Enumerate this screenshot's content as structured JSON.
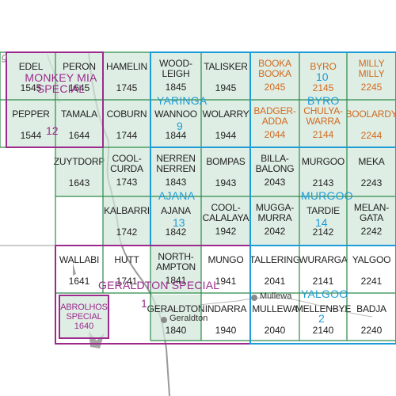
{
  "map": {
    "sheets": [
      {
        "id": "edel",
        "name": "EDEL",
        "number": "1545",
        "shaded": true
      },
      {
        "id": "peron",
        "name": "PERON",
        "number": "1645",
        "shaded": true
      },
      {
        "id": "hamelin",
        "name": "HAMELIN",
        "number": "1745",
        "shaded": true
      },
      {
        "id": "woodleigh",
        "name": "WOOD-\nLEIGH",
        "number": "1845",
        "shaded": true
      },
      {
        "id": "talisker",
        "name": "TALISKER",
        "number": "1945",
        "shaded": true
      },
      {
        "id": "booka-booka",
        "name": "BOOKA\nBOOKA",
        "number": "2045",
        "orange": true
      },
      {
        "id": "byro",
        "name": "BYRO",
        "number": "2145",
        "orange": true
      },
      {
        "id": "milly-milly",
        "name": "MILLY\nMILLY",
        "number": "2245",
        "orange": true
      },
      {
        "id": "pepper",
        "name": "PEPPER",
        "number": "1544",
        "shaded": true
      },
      {
        "id": "tamala",
        "name": "TAMALA",
        "number": "1644",
        "shaded": true
      },
      {
        "id": "coburn",
        "name": "COBURN",
        "number": "1744",
        "shaded": true
      },
      {
        "id": "wannoo",
        "name": "WANNOO",
        "number": "1844",
        "shaded": true
      },
      {
        "id": "wolarry",
        "name": "WOLARRY",
        "number": "1944",
        "shaded": true
      },
      {
        "id": "badgeradda",
        "name": "BADGER-\nADDA",
        "number": "2044",
        "orange": true
      },
      {
        "id": "chulyawarra",
        "name": "CHULYA-\nWARRA",
        "number": "2144",
        "orange": true
      },
      {
        "id": "boolardy",
        "name": "BOOLARDY",
        "number": "2244",
        "orange": true
      },
      {
        "id": "zuytdorp",
        "name": "ZUYTDORP",
        "number": "1643",
        "shaded": true
      },
      {
        "id": "coolcurda",
        "name": "COOL-\nCURDA",
        "number": "1743",
        "shaded": true
      },
      {
        "id": "nerren-nerren",
        "name": "NERREN\nNERREN",
        "number": "1843",
        "shaded": true
      },
      {
        "id": "bompas",
        "name": "BOMPAS",
        "number": "1943",
        "shaded": true
      },
      {
        "id": "billabalong",
        "name": "BILLA-\nBALONG",
        "number": "2043",
        "shaded": true
      },
      {
        "id": "murgoo",
        "name": "MURGOO",
        "number": "2143",
        "shaded": true
      },
      {
        "id": "meka",
        "name": "MEKA",
        "number": "2243",
        "shaded": true
      },
      {
        "id": "kalbarri",
        "name": "KALBARRI",
        "number": "1742",
        "shaded": true
      },
      {
        "id": "ajana",
        "name": "AJANA",
        "number": "1842",
        "shaded": true
      },
      {
        "id": "coolcalalaya",
        "name": "COOL-\nCALALAYA",
        "number": "1942",
        "shaded": true
      },
      {
        "id": "muggamurra",
        "name": "MUGGA-\nMURRA",
        "number": "2042",
        "shaded": true
      },
      {
        "id": "tardie",
        "name": "TARDIE",
        "number": "2142",
        "shaded": true
      },
      {
        "id": "melangata",
        "name": "MELAN-\nGATA",
        "number": "2242",
        "shaded": true
      },
      {
        "id": "wallabi",
        "name": "WALLABI",
        "number": "1641",
        "shaded": false
      },
      {
        "id": "hutt",
        "name": "HUTT",
        "number": "1741",
        "shaded": false
      },
      {
        "id": "northampton",
        "name": "NORTH-\nAMPTON",
        "number": "1841",
        "shaded": true
      },
      {
        "id": "mungo",
        "name": "MUNGO",
        "number": "1941",
        "shaded": false
      },
      {
        "id": "tallering",
        "name": "TALLERING",
        "number": "2041",
        "shaded": false
      },
      {
        "id": "wurarga",
        "name": "WURARGA",
        "number": "2141",
        "shaded": false
      },
      {
        "id": "yalgoo",
        "name": "YALGOO",
        "number": "2241",
        "shaded": false
      },
      {
        "id": "geraldton",
        "name": "GERALDTON",
        "number": "1840",
        "shaded": true
      },
      {
        "id": "indarra",
        "name": "INDARRA",
        "number": "1940",
        "shaded": false
      },
      {
        "id": "mullewa",
        "name": "MULLEWA",
        "number": "2040",
        "shaded": false
      },
      {
        "id": "mellenbye",
        "name": "MELLENBYE",
        "number": "2140",
        "shaded": false
      },
      {
        "id": "badja",
        "name": "BADJA",
        "number": "2240",
        "shaded": false
      }
    ],
    "abrolhos": {
      "name": "ABROLHOS\nSPECIAL",
      "number": "1640"
    },
    "groups": {
      "monkey_mia": {
        "label": "MONKEY MIA\nSPECIAL",
        "number": "12"
      },
      "yaringa": {
        "label": "YARINGA",
        "number": "9"
      },
      "byro": {
        "label": "BYRO",
        "number": "10"
      },
      "ajana": {
        "label": "AJANA",
        "number": "13"
      },
      "murgoo": {
        "label": "MURGOO",
        "number": "14"
      },
      "geraldton_special": {
        "label": "GERALDTON SPECIAL",
        "number": "1"
      },
      "yalgoo": {
        "label": "YALGOO",
        "number": "2"
      }
    },
    "towns": {
      "geraldton": "Geraldton",
      "mullewa": "Mullewa"
    },
    "corner_text": "g",
    "colors": {
      "shaded_fill": "#d2e8da",
      "grid_line": "#2a8a4a",
      "orange_text": "#d2691e",
      "purple": "#9b2a8c",
      "cyan": "#1e9cd8",
      "coast": "#9a9a9a"
    }
  }
}
